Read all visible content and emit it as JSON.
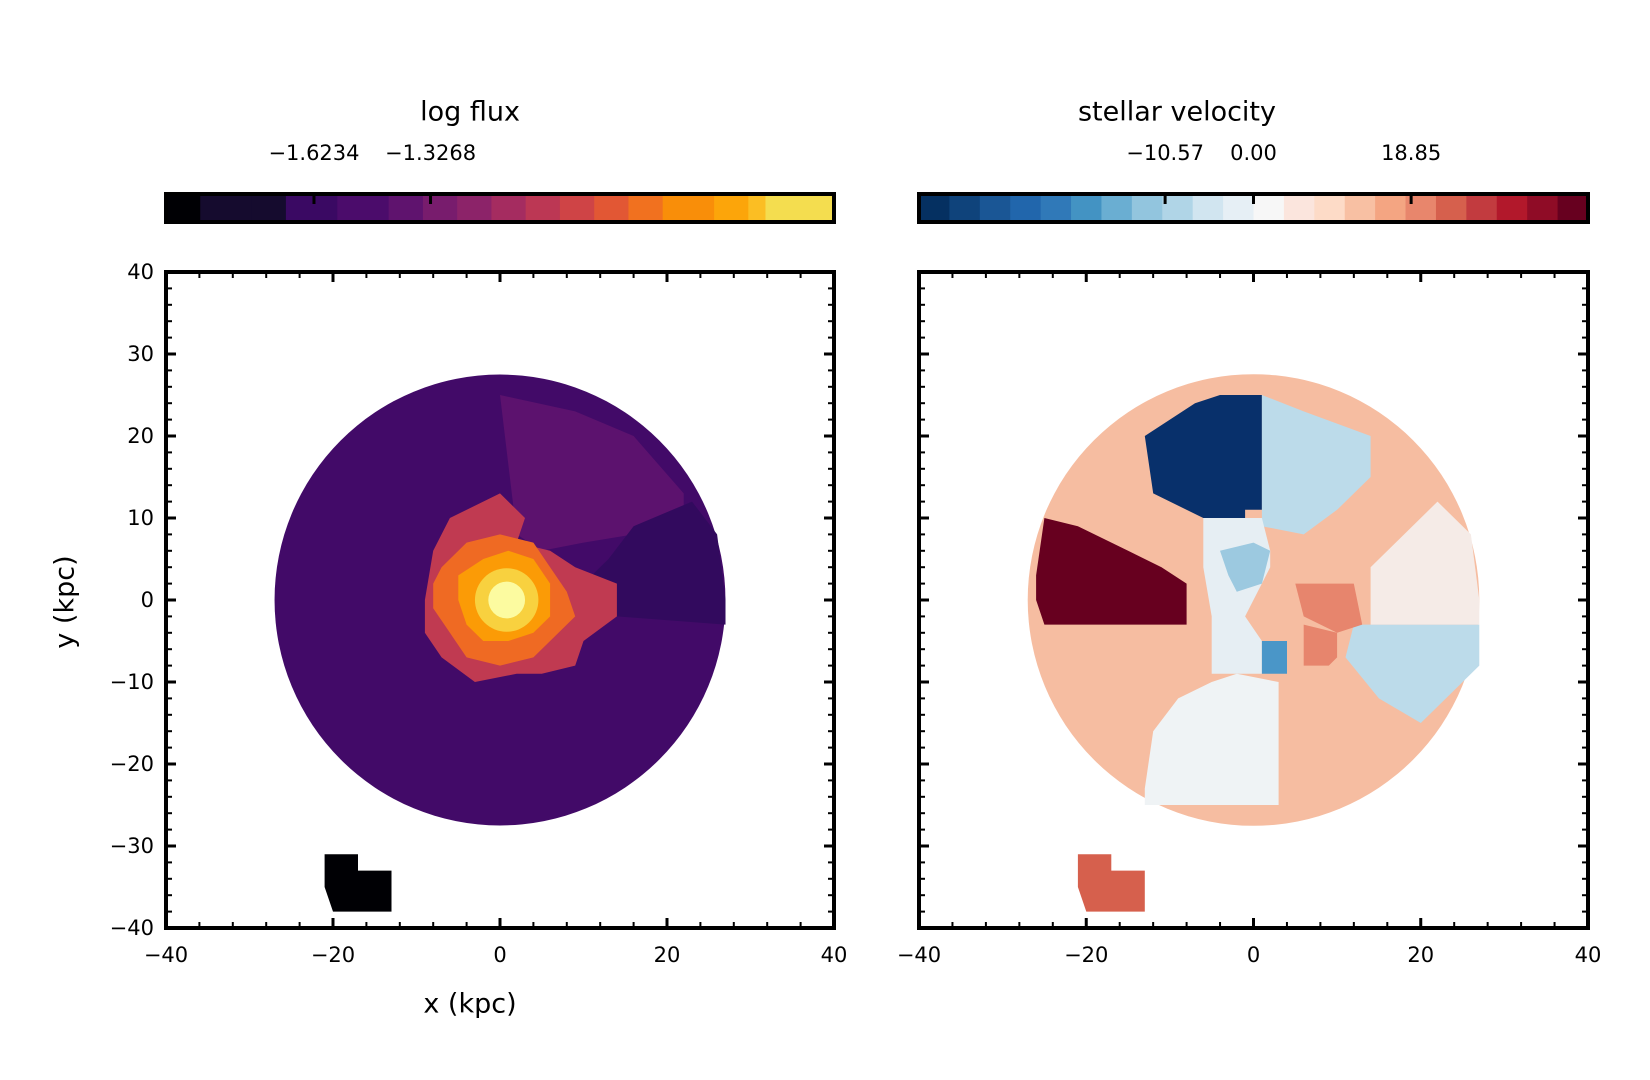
{
  "chart_data": [
    {
      "type": "heatmap",
      "title": "log flux",
      "xlabel": "x (kpc)",
      "ylabel": "y (kpc)",
      "xlim": [
        -40,
        40
      ],
      "ylim": [
        -40,
        40
      ],
      "xticks": [
        -40,
        -20,
        0,
        20,
        40
      ],
      "yticks": [
        -40,
        -30,
        -20,
        -10,
        0,
        10,
        20,
        30,
        40
      ],
      "xtick_labels": [
        "−40",
        "−20",
        "0",
        "20",
        "40"
      ],
      "ytick_labels": [
        "−40",
        "−30",
        "−20",
        "−10",
        "0",
        "10",
        "20",
        "30",
        "40"
      ],
      "colormap": "inferno",
      "colorbar": {
        "location": "top",
        "vmin": -2.0,
        "vmax": -0.3,
        "ticks": [
          -1.6234,
          -1.3268
        ],
        "tick_labels": [
          "−1.6234",
          "−1.3268"
        ],
        "colors": [
          "#000004",
          "#150b2e",
          "#150b2e",
          "#3a0963",
          "#4b0c6b",
          "#5f136e",
          "#781c6d",
          "#8c2369",
          "#a52c60",
          "#bc3754",
          "#cf4446",
          "#e25734",
          "#f1711f",
          "#f98e09",
          "#fca50a",
          "#fbbe23",
          "#f4dd4f",
          "#fcffa4"
        ],
        "widths": [
          2,
          3,
          2,
          3,
          3,
          2,
          2,
          2,
          2,
          2,
          2,
          2,
          2,
          3,
          2,
          1,
          4,
          0.001
        ]
      },
      "regions": [
        {
          "label": "outer disk",
          "value": -1.7,
          "color": "#420a68",
          "circle": [
            0,
            0,
            27
          ]
        },
        {
          "label": "north-east sector",
          "value": -1.55,
          "color": "#5c126e",
          "poly": [
            [
              0,
              25
            ],
            [
              9,
              23
            ],
            [
              16,
              20
            ],
            [
              22,
              13
            ],
            [
              22,
              9
            ],
            [
              10,
              7
            ],
            [
              5,
              6
            ],
            [
              2,
              8
            ]
          ]
        },
        {
          "label": "east sector",
          "value": -1.85,
          "color": "#320a5e",
          "poly": [
            [
              13,
              5
            ],
            [
              16,
              9
            ],
            [
              23,
              12
            ],
            [
              26,
              8
            ],
            [
              27,
              0
            ],
            [
              27,
              -3
            ],
            [
              14,
              -2
            ],
            [
              10,
              2
            ]
          ]
        },
        {
          "label": "companion clump",
          "value": -2.0,
          "color": "#000004",
          "poly": [
            [
              -21,
              -31
            ],
            [
              -17,
              -31
            ],
            [
              -17,
              -33
            ],
            [
              -13,
              -33
            ],
            [
              -13,
              -38
            ],
            [
              -20,
              -38
            ],
            [
              -21,
              -35
            ]
          ]
        },
        {
          "label": "inner ring",
          "value": -1.25,
          "color": "#c03a51",
          "poly": [
            [
              -6,
              10
            ],
            [
              0,
              13
            ],
            [
              3,
              10
            ],
            [
              2,
              7
            ],
            [
              6,
              6
            ],
            [
              9,
              4
            ],
            [
              14,
              2
            ],
            [
              14,
              -2
            ],
            [
              10,
              -5
            ],
            [
              9,
              -8
            ],
            [
              5,
              -9
            ],
            [
              2,
              -9
            ],
            [
              -3,
              -10
            ],
            [
              -7,
              -7
            ],
            [
              -9,
              -4
            ],
            [
              -9,
              0
            ],
            [
              -8,
              6
            ]
          ]
        },
        {
          "label": "mid ring",
          "value": -0.9,
          "color": "#ef6a23",
          "poly": [
            [
              -7,
              4
            ],
            [
              -4,
              7
            ],
            [
              0,
              8
            ],
            [
              4,
              7
            ],
            [
              6,
              4
            ],
            [
              8,
              1
            ],
            [
              9,
              -2
            ],
            [
              6,
              -5
            ],
            [
              4,
              -7
            ],
            [
              0,
              -8
            ],
            [
              -4,
              -7
            ],
            [
              -6,
              -4
            ],
            [
              -8,
              -1
            ],
            [
              -8,
              2
            ]
          ]
        },
        {
          "label": "inner bright",
          "value": -0.6,
          "color": "#fb9b06",
          "poly": [
            [
              -5,
              3
            ],
            [
              -2,
              5
            ],
            [
              1,
              6
            ],
            [
              4,
              5
            ],
            [
              6,
              2
            ],
            [
              6,
              -2
            ],
            [
              4,
              -4
            ],
            [
              1,
              -5
            ],
            [
              -2,
              -5
            ],
            [
              -4,
              -3
            ],
            [
              -5,
              0
            ]
          ]
        },
        {
          "label": "core",
          "value": -0.45,
          "color": "#f8d13f",
          "circle": [
            0.8,
            0,
            3.8
          ]
        },
        {
          "label": "nucleus",
          "value": -0.3,
          "color": "#fcfba0",
          "circle": [
            0.8,
            0,
            2.2
          ]
        }
      ]
    },
    {
      "type": "heatmap",
      "title": "stellar velocity",
      "xlabel": "",
      "ylabel": "",
      "xlim": [
        -40,
        40
      ],
      "ylim": [
        -40,
        40
      ],
      "xticks": [
        -40,
        -20,
        0,
        20,
        40
      ],
      "yticks": [
        -40,
        -30,
        -20,
        -10,
        0,
        10,
        20,
        30,
        40
      ],
      "xtick_labels": [
        "−40",
        "−20",
        "0",
        "20",
        "40"
      ],
      "ytick_labels": [],
      "colormap": "RdBu_r",
      "colorbar": {
        "location": "top",
        "vmin": -40.0,
        "vmax": 40.0,
        "ticks": [
          -10.57,
          0.0,
          18.85
        ],
        "tick_labels": [
          "−10.57",
          "0.00",
          "18.85"
        ],
        "colors": [
          "#053061",
          "#0f437b",
          "#1a5695",
          "#2166ac",
          "#3079b8",
          "#4393c3",
          "#6aaed2",
          "#92c5de",
          "#b0d5e7",
          "#d1e5f0",
          "#e6eff5",
          "#f7f7f7",
          "#fbe5dd",
          "#fddbc7",
          "#f8c0a3",
          "#f4a582",
          "#e8866c",
          "#d6604d",
          "#c23b3f",
          "#b2182b",
          "#8f0c26",
          "#67001f"
        ],
        "widths": [
          1,
          1,
          1,
          1,
          1,
          1,
          1,
          1,
          1,
          1,
          1,
          1,
          1,
          1,
          1,
          1,
          1,
          1,
          1,
          1,
          1,
          1
        ]
      },
      "regions": [
        {
          "label": "disk background",
          "value": 5.0,
          "color": "#f6bda1",
          "circle": [
            0,
            0,
            27
          ]
        },
        {
          "label": "north-west approaching",
          "value": -40.0,
          "color": "#08306b",
          "poly": [
            [
              -4,
              25
            ],
            [
              1,
              25
            ],
            [
              1,
              11
            ],
            [
              -1,
              11
            ],
            [
              -1,
              10
            ],
            [
              -6,
              10
            ],
            [
              -12,
              13
            ],
            [
              -13,
              20
            ],
            [
              -7,
              24
            ]
          ]
        },
        {
          "label": "north-east sector",
          "value": -8.0,
          "color": "#bcdbea",
          "poly": [
            [
              1,
              25
            ],
            [
              6,
              23
            ],
            [
              14,
              20
            ],
            [
              14,
              15
            ],
            [
              10,
              11
            ],
            [
              6,
              8
            ],
            [
              1,
              9
            ]
          ]
        },
        {
          "label": "east-south-east sector",
          "value": -8.0,
          "color": "#bcdbea",
          "poly": [
            [
              12,
              -3
            ],
            [
              27,
              -3
            ],
            [
              27,
              -8
            ],
            [
              22,
              -13
            ],
            [
              20,
              -15
            ],
            [
              15,
              -12
            ],
            [
              11,
              -7
            ]
          ]
        },
        {
          "label": "east sector",
          "value": 2.0,
          "color": "#f5ebe7",
          "poly": [
            [
              14,
              4
            ],
            [
              22,
              12
            ],
            [
              26,
              8
            ],
            [
              27,
              0
            ],
            [
              27,
              -3
            ],
            [
              14,
              -3
            ]
          ]
        },
        {
          "label": "south sector",
          "value": 0.5,
          "color": "#eff3f5",
          "poly": [
            [
              -13,
              -23
            ],
            [
              -13,
              -25
            ],
            [
              3,
              -25
            ],
            [
              3,
              -10
            ],
            [
              -2,
              -9
            ],
            [
              -5,
              -10
            ],
            [
              -9,
              -12
            ],
            [
              -12,
              -16
            ]
          ]
        },
        {
          "label": "west receding",
          "value": 40.0,
          "color": "#67001f",
          "poly": [
            [
              -25,
              10
            ],
            [
              -21,
              9
            ],
            [
              -15,
              6
            ],
            [
              -11,
              4
            ],
            [
              -8,
              2
            ],
            [
              -8,
              -3
            ],
            [
              -25,
              -3
            ],
            [
              -26,
              0
            ],
            [
              -26,
              3
            ]
          ]
        },
        {
          "label": "central light",
          "value": -1.0,
          "color": "#e6eef3",
          "poly": [
            [
              -6,
              10
            ],
            [
              -6,
              4
            ],
            [
              -5,
              -2
            ],
            [
              -5,
              -9
            ],
            [
              1,
              -9
            ],
            [
              1,
              -5
            ],
            [
              -1,
              -2
            ],
            [
              2,
              4
            ],
            [
              2,
              6
            ],
            [
              1,
              10
            ]
          ]
        },
        {
          "label": "central blue patch",
          "value": -10.0,
          "color": "#9cc9e0",
          "poly": [
            [
              -4,
              6
            ],
            [
              0,
              7
            ],
            [
              2,
              6
            ],
            [
              1,
              2
            ],
            [
              -2,
              1
            ],
            [
              -3,
              3
            ]
          ]
        },
        {
          "label": "central red patch",
          "value": 18.0,
          "color": "#e7856d",
          "poly": [
            [
              5,
              2
            ],
            [
              12,
              2
            ],
            [
              13,
              -3
            ],
            [
              10,
              -4
            ],
            [
              6,
              -2
            ]
          ]
        },
        {
          "label": "south-east red patch",
          "value": 15.0,
          "color": "#e7856d",
          "poly": [
            [
              6,
              -3
            ],
            [
              10,
              -4
            ],
            [
              10,
              -7
            ],
            [
              9,
              -8
            ],
            [
              6,
              -8
            ],
            [
              6,
              -5
            ]
          ]
        },
        {
          "label": "nuclear blue",
          "value": -22.0,
          "color": "#4a96c8",
          "poly": [
            [
              1,
              -5
            ],
            [
              4,
              -5
            ],
            [
              4,
              -9
            ],
            [
              1,
              -9
            ]
          ]
        },
        {
          "label": "companion clump",
          "value": 25.0,
          "color": "#d6604d",
          "poly": [
            [
              -21,
              -31
            ],
            [
              -17,
              -31
            ],
            [
              -17,
              -33
            ],
            [
              -13,
              -33
            ],
            [
              -13,
              -38
            ],
            [
              -20,
              -38
            ],
            [
              -21,
              -35
            ]
          ]
        }
      ]
    }
  ]
}
